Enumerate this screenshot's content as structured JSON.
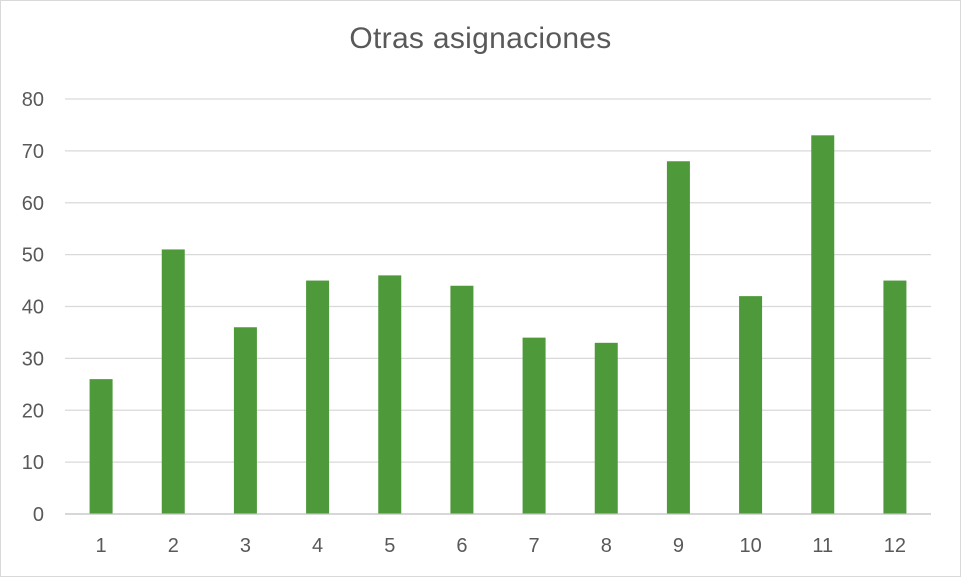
{
  "chart_data": {
    "type": "bar",
    "title": "Otras asignaciones",
    "xlabel": "",
    "ylabel": "",
    "categories": [
      "1",
      "2",
      "3",
      "4",
      "5",
      "6",
      "7",
      "8",
      "9",
      "10",
      "11",
      "12"
    ],
    "values": [
      26,
      51,
      36,
      45,
      46,
      44,
      34,
      33,
      68,
      42,
      73,
      45
    ],
    "ylim": [
      0,
      80
    ],
    "yticks": [
      "0",
      "10",
      "20",
      "30",
      "40",
      "50",
      "60",
      "70",
      "80"
    ],
    "grid": true,
    "legend": "none",
    "colors": {
      "bar": "#4e9a3a",
      "grid": "#d9d9d9",
      "axis": "#bfbfbf",
      "text": "#595959"
    }
  }
}
